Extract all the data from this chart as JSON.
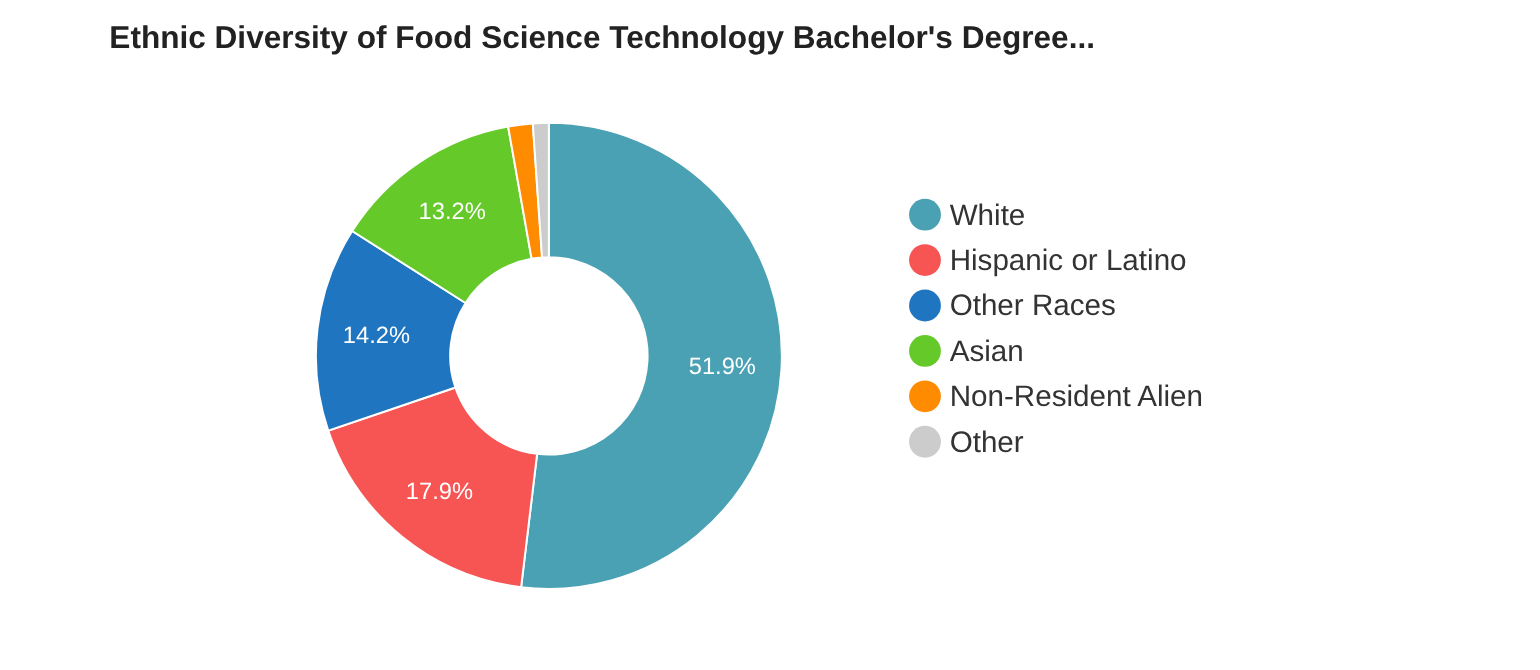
{
  "chart_data": {
    "type": "donut",
    "title": "Ethnic Diversity of Food Science Technology Bachelor's Degree...",
    "categories": [
      "White",
      "Hispanic or Latino",
      "Other Races",
      "Asian",
      "Non-Resident Alien",
      "Other"
    ],
    "values": [
      51.9,
      17.9,
      14.2,
      13.2,
      1.7,
      1.1
    ],
    "colors": [
      "#4aa1b3",
      "#f75454",
      "#1f75c0",
      "#65c92a",
      "#ff8c00",
      "#cccccc"
    ],
    "value_labels": [
      "51.9%",
      "17.9%",
      "14.2%",
      "13.2%",
      null,
      null
    ],
    "legend": "right"
  }
}
